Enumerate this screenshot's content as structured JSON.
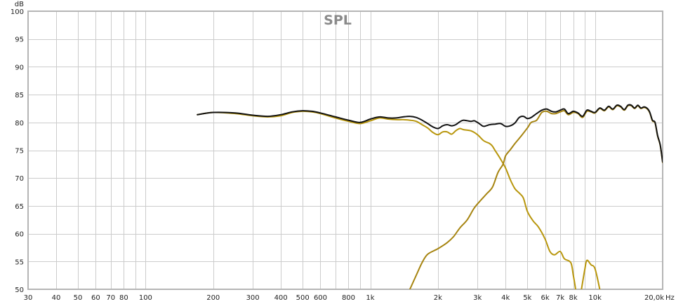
{
  "chart_data": {
    "type": "line",
    "title": "SPL",
    "y_unit_label": "dB",
    "x_unit_label": "Hz",
    "x_scale": "log",
    "xlim": [
      30,
      20000
    ],
    "ylim": [
      50,
      100
    ],
    "grid": true,
    "legend": "none",
    "y_ticks": [
      {
        "value": 100,
        "label": "100"
      },
      {
        "value": 95,
        "label": "95"
      },
      {
        "value": 90,
        "label": "90"
      },
      {
        "value": 85,
        "label": "85"
      },
      {
        "value": 80,
        "label": "80"
      },
      {
        "value": 75,
        "label": "75"
      },
      {
        "value": 70,
        "label": "70"
      },
      {
        "value": 65,
        "label": "65"
      },
      {
        "value": 60,
        "label": "60"
      },
      {
        "value": 55,
        "label": "55"
      },
      {
        "value": 50,
        "label": "50"
      }
    ],
    "x_ticks": [
      {
        "value": 30,
        "label": "30"
      },
      {
        "value": 40,
        "label": "40"
      },
      {
        "value": 50,
        "label": "50"
      },
      {
        "value": 60,
        "label": "60"
      },
      {
        "value": 70,
        "label": "70"
      },
      {
        "value": 80,
        "label": "80"
      },
      {
        "value": 100,
        "label": "100"
      },
      {
        "value": 200,
        "label": "200"
      },
      {
        "value": 300,
        "label": "300"
      },
      {
        "value": 400,
        "label": "400"
      },
      {
        "value": 500,
        "label": "500"
      },
      {
        "value": 600,
        "label": "600"
      },
      {
        "value": 800,
        "label": "800"
      },
      {
        "value": 1000,
        "label": "1k"
      },
      {
        "value": 2000,
        "label": "2k"
      },
      {
        "value": 3000,
        "label": "3k"
      },
      {
        "value": 4000,
        "label": "4k"
      },
      {
        "value": 5000,
        "label": "5k"
      },
      {
        "value": 6000,
        "label": "6k"
      },
      {
        "value": 7000,
        "label": "7k"
      },
      {
        "value": 8000,
        "label": "8k"
      },
      {
        "value": 10000,
        "label": "10k"
      },
      {
        "value": 20000,
        "label": "20,0k"
      }
    ],
    "minor_grid_x": [
      90,
      700,
      900,
      9000
    ],
    "colors": {
      "sum": "#111111",
      "woofer": "#b8960c",
      "tweeter": "#a68410",
      "grid": "#cccccc",
      "frame": "#b5b5b5"
    },
    "series": [
      {
        "key": "sum",
        "points": [
          [
            170,
            81.4
          ],
          [
            200,
            81.8
          ],
          [
            250,
            81.7
          ],
          [
            300,
            81.3
          ],
          [
            350,
            81.1
          ],
          [
            400,
            81.4
          ],
          [
            450,
            81.9
          ],
          [
            500,
            82.1
          ],
          [
            550,
            82.0
          ],
          [
            600,
            81.7
          ],
          [
            700,
            81.0
          ],
          [
            800,
            80.4
          ],
          [
            900,
            80.0
          ],
          [
            1000,
            80.6
          ],
          [
            1100,
            81.0
          ],
          [
            1200,
            80.8
          ],
          [
            1300,
            80.8
          ],
          [
            1400,
            81.0
          ],
          [
            1500,
            81.1
          ],
          [
            1600,
            80.9
          ],
          [
            1700,
            80.4
          ],
          [
            1800,
            79.8
          ],
          [
            1900,
            79.2
          ],
          [
            2000,
            78.9
          ],
          [
            2100,
            79.4
          ],
          [
            2200,
            79.6
          ],
          [
            2300,
            79.4
          ],
          [
            2400,
            79.6
          ],
          [
            2500,
            80.1
          ],
          [
            2600,
            80.4
          ],
          [
            2800,
            80.2
          ],
          [
            2900,
            80.3
          ],
          [
            3000,
            80.0
          ],
          [
            3100,
            79.6
          ],
          [
            3200,
            79.3
          ],
          [
            3400,
            79.6
          ],
          [
            3600,
            79.7
          ],
          [
            3800,
            79.8
          ],
          [
            4000,
            79.3
          ],
          [
            4200,
            79.4
          ],
          [
            4400,
            79.9
          ],
          [
            4600,
            80.9
          ],
          [
            4800,
            81.1
          ],
          [
            5000,
            80.7
          ],
          [
            5200,
            80.9
          ],
          [
            5500,
            81.6
          ],
          [
            5800,
            82.2
          ],
          [
            6100,
            82.4
          ],
          [
            6400,
            82.0
          ],
          [
            6700,
            81.9
          ],
          [
            7000,
            82.2
          ],
          [
            7300,
            82.4
          ],
          [
            7600,
            81.6
          ],
          [
            8000,
            82.0
          ],
          [
            8400,
            81.7
          ],
          [
            8800,
            81.1
          ],
          [
            9200,
            82.2
          ],
          [
            9600,
            82.0
          ],
          [
            10000,
            81.8
          ],
          [
            10500,
            82.6
          ],
          [
            11000,
            82.2
          ],
          [
            11500,
            82.9
          ],
          [
            12000,
            82.4
          ],
          [
            12500,
            83.1
          ],
          [
            13000,
            82.9
          ],
          [
            13500,
            82.3
          ],
          [
            14000,
            83.1
          ],
          [
            14500,
            83.1
          ],
          [
            15000,
            82.6
          ],
          [
            15500,
            83.1
          ],
          [
            16000,
            82.6
          ],
          [
            16500,
            82.8
          ],
          [
            17000,
            82.6
          ],
          [
            17500,
            81.9
          ],
          [
            18000,
            80.4
          ],
          [
            18500,
            80.0
          ],
          [
            19000,
            77.6
          ],
          [
            19500,
            76.0
          ],
          [
            20000,
            72.9
          ]
        ]
      },
      {
        "key": "woofer",
        "points": [
          [
            170,
            81.4
          ],
          [
            200,
            81.8
          ],
          [
            250,
            81.6
          ],
          [
            300,
            81.2
          ],
          [
            350,
            81.0
          ],
          [
            400,
            81.2
          ],
          [
            450,
            81.8
          ],
          [
            500,
            82.0
          ],
          [
            550,
            81.9
          ],
          [
            600,
            81.6
          ],
          [
            700,
            80.8
          ],
          [
            800,
            80.2
          ],
          [
            900,
            79.8
          ],
          [
            1000,
            80.3
          ],
          [
            1100,
            80.8
          ],
          [
            1200,
            80.6
          ],
          [
            1300,
            80.5
          ],
          [
            1400,
            80.5
          ],
          [
            1500,
            80.4
          ],
          [
            1600,
            80.2
          ],
          [
            1700,
            79.6
          ],
          [
            1800,
            79.0
          ],
          [
            1900,
            78.2
          ],
          [
            2000,
            77.8
          ],
          [
            2100,
            78.3
          ],
          [
            2200,
            78.3
          ],
          [
            2300,
            77.9
          ],
          [
            2400,
            78.5
          ],
          [
            2500,
            78.9
          ],
          [
            2600,
            78.7
          ],
          [
            2800,
            78.5
          ],
          [
            3000,
            77.8
          ],
          [
            3200,
            76.7
          ],
          [
            3400,
            76.2
          ],
          [
            3500,
            75.7
          ],
          [
            3600,
            74.9
          ],
          [
            3800,
            73.4
          ],
          [
            4000,
            71.8
          ],
          [
            4200,
            69.7
          ],
          [
            4400,
            68.1
          ],
          [
            4600,
            67.3
          ],
          [
            4800,
            66.4
          ],
          [
            5000,
            64.0
          ],
          [
            5300,
            62.3
          ],
          [
            5600,
            61.2
          ],
          [
            6000,
            59.0
          ],
          [
            6300,
            56.8
          ],
          [
            6600,
            56.2
          ],
          [
            7000,
            56.8
          ],
          [
            7300,
            55.5
          ],
          [
            7800,
            54.8
          ],
          [
            8000,
            52.6
          ],
          [
            8200,
            50.0
          ]
        ]
      },
      {
        "key": "woofer_tail",
        "points": [
          [
            8700,
            50.0
          ],
          [
            9000,
            53.5
          ],
          [
            9200,
            55.2
          ],
          [
            9600,
            54.4
          ],
          [
            10000,
            53.7
          ],
          [
            10500,
            50.0
          ]
        ]
      },
      {
        "key": "tweeter",
        "points": [
          [
            1500,
            50.0
          ],
          [
            1600,
            52.5
          ],
          [
            1700,
            54.8
          ],
          [
            1800,
            56.3
          ],
          [
            2000,
            57.3
          ],
          [
            2200,
            58.4
          ],
          [
            2350,
            59.5
          ],
          [
            2500,
            61.0
          ],
          [
            2700,
            62.5
          ],
          [
            2900,
            64.6
          ],
          [
            3100,
            66.0
          ],
          [
            3300,
            67.2
          ],
          [
            3500,
            68.4
          ],
          [
            3700,
            71.0
          ],
          [
            3900,
            72.5
          ],
          [
            4000,
            74.0
          ],
          [
            4200,
            75.1
          ],
          [
            4400,
            76.2
          ],
          [
            4700,
            77.6
          ],
          [
            5000,
            79.0
          ],
          [
            5200,
            80.0
          ],
          [
            5500,
            80.4
          ],
          [
            5800,
            81.8
          ],
          [
            6100,
            82.0
          ],
          [
            6400,
            81.6
          ],
          [
            6700,
            81.6
          ],
          [
            7000,
            81.9
          ],
          [
            7300,
            82.1
          ],
          [
            7600,
            81.4
          ],
          [
            8000,
            81.8
          ],
          [
            8400,
            81.6
          ],
          [
            8800,
            80.9
          ],
          [
            9200,
            82.0
          ],
          [
            9600,
            81.9
          ],
          [
            10000,
            81.7
          ],
          [
            10500,
            82.5
          ],
          [
            11000,
            82.1
          ],
          [
            11500,
            82.8
          ],
          [
            12000,
            82.3
          ],
          [
            12500,
            83.0
          ],
          [
            13000,
            82.8
          ],
          [
            13500,
            82.2
          ],
          [
            14000,
            83.0
          ],
          [
            14500,
            83.0
          ],
          [
            15000,
            82.5
          ],
          [
            15500,
            83.0
          ],
          [
            16000,
            82.5
          ],
          [
            16500,
            82.7
          ],
          [
            17000,
            82.5
          ],
          [
            17500,
            81.8
          ],
          [
            18000,
            80.3
          ],
          [
            18500,
            79.9
          ],
          [
            19000,
            77.5
          ],
          [
            19500,
            75.9
          ],
          [
            20000,
            72.8
          ]
        ]
      }
    ]
  }
}
